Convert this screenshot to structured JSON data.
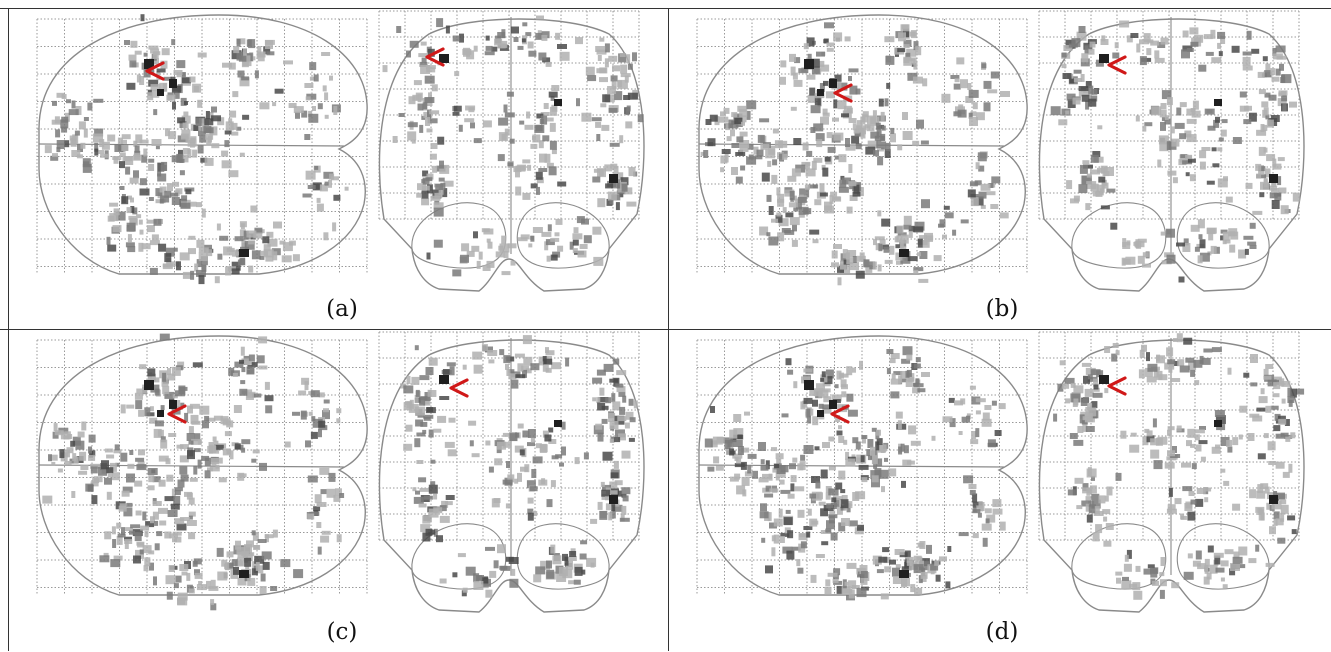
{
  "figure": {
    "panels": [
      {
        "label": "(a)"
      },
      {
        "label": "(b)"
      },
      {
        "label": "(c)"
      },
      {
        "label": "(d)"
      }
    ]
  },
  "colors": {
    "background": "#ffffff",
    "outline": "#8a8a8a",
    "grid": "#9a9a9a",
    "blob_light": "#b0b0b0",
    "blob_mid": "#7a7a7a",
    "blob_dark": "#1f1f1f",
    "marker": "#d01818",
    "frame": "#333333"
  },
  "marker_icon": "red-chevron-left-icon"
}
